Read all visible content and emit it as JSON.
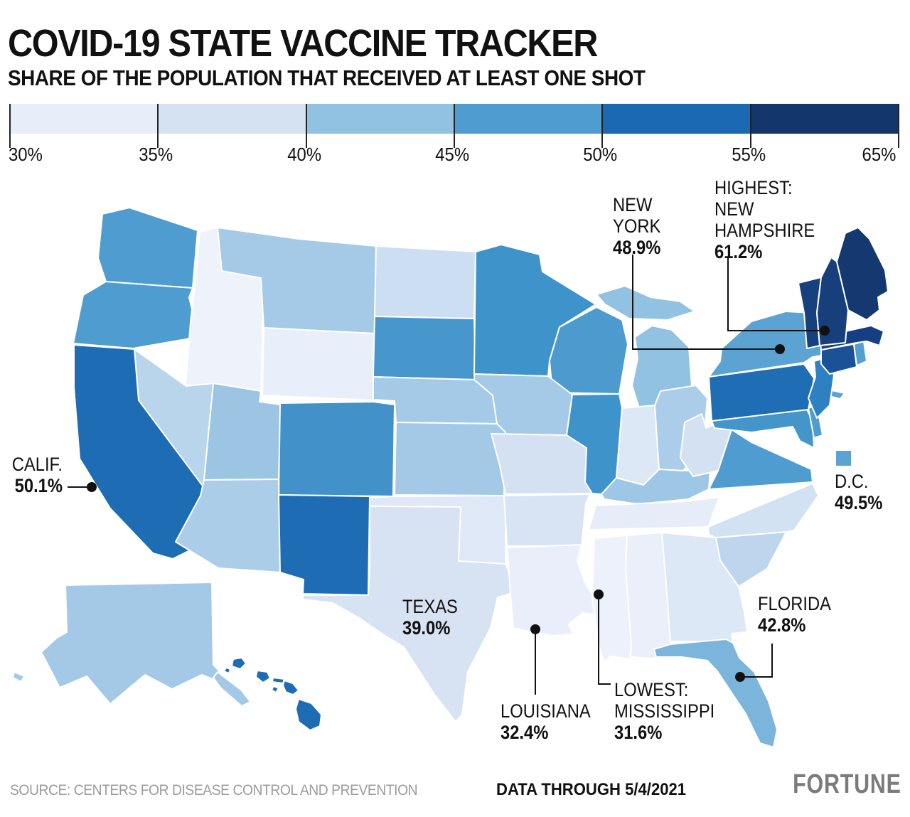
{
  "header": {
    "title": "COVID-19 STATE VACCINE TRACKER",
    "subtitle": "SHARE OF THE POPULATION THAT RECEIVED AT LEAST ONE SHOT"
  },
  "legend": {
    "ticks": [
      "30%",
      "35%",
      "40%",
      "45%",
      "50%",
      "55%",
      "65%"
    ],
    "segment_colors": [
      "#e8edfa",
      "#d4e2f2",
      "#92c2e2",
      "#4f9cd0",
      "#1b69b2",
      "#13376c"
    ]
  },
  "annotations": {
    "new_york": {
      "lines": [
        "NEW",
        "YORK"
      ],
      "value": "48.9%"
    },
    "new_hampshire": {
      "lines": [
        "HIGHEST:",
        "NEW",
        "HAMPSHIRE"
      ],
      "value": "61.2%"
    },
    "california": {
      "lines": [
        "CALIF."
      ],
      "value": "50.1%"
    },
    "dc": {
      "lines": [
        "D.C."
      ],
      "value": "49.5%"
    },
    "texas": {
      "lines": [
        "TEXAS"
      ],
      "value": "39.0%"
    },
    "florida": {
      "lines": [
        "FLORIDA"
      ],
      "value": "42.8%"
    },
    "louisiana": {
      "lines": [
        "LOUISIANA"
      ],
      "value": "32.4%"
    },
    "mississippi": {
      "lines": [
        "LOWEST:",
        "MISSISSIPPI"
      ],
      "value": "31.6%"
    }
  },
  "footer": {
    "source": "SOURCE: CENTERS FOR DISEASE CONTROL AND PREVENTION",
    "data_through": "DATA THROUGH 5/4/2021",
    "brand": "FORTUNE"
  },
  "map": {
    "states": [
      {
        "id": "WA",
        "name": "Washington",
        "color": "#4f9cd0"
      },
      {
        "id": "OR",
        "name": "Oregon",
        "color": "#4f9cd0"
      },
      {
        "id": "CA",
        "name": "California",
        "color": "#1e6cb4"
      },
      {
        "id": "NV",
        "name": "Nevada",
        "color": "#b9d5ec"
      },
      {
        "id": "ID",
        "name": "Idaho",
        "color": "#edf2fb"
      },
      {
        "id": "MT",
        "name": "Montana",
        "color": "#a5cae7"
      },
      {
        "id": "WY",
        "name": "Wyoming",
        "color": "#e9effa"
      },
      {
        "id": "UT",
        "name": "Utah",
        "color": "#9cc5e4"
      },
      {
        "id": "AZ",
        "name": "Arizona",
        "color": "#abcde8"
      },
      {
        "id": "CO",
        "name": "Colorado",
        "color": "#4292c9"
      },
      {
        "id": "NM",
        "name": "New Mexico",
        "color": "#1e6cb4"
      },
      {
        "id": "ND",
        "name": "North Dakota",
        "color": "#ccdef1"
      },
      {
        "id": "SD",
        "name": "South Dakota",
        "color": "#4796cb"
      },
      {
        "id": "NE",
        "name": "Nebraska",
        "color": "#a5cae7"
      },
      {
        "id": "KS",
        "name": "Kansas",
        "color": "#a3c9e7"
      },
      {
        "id": "OK",
        "name": "Oklahoma",
        "color": "#dfe8f6"
      },
      {
        "id": "TX",
        "name": "Texas",
        "color": "#d7e2f2"
      },
      {
        "id": "MN",
        "name": "Minnesota",
        "color": "#3f93cb"
      },
      {
        "id": "IA",
        "name": "Iowa",
        "color": "#a5cae7"
      },
      {
        "id": "MO",
        "name": "Missouri",
        "color": "#d3e1f2"
      },
      {
        "id": "AR",
        "name": "Arkansas",
        "color": "#d8e4f4"
      },
      {
        "id": "LA",
        "name": "Louisiana",
        "color": "#e9eefa"
      },
      {
        "id": "WI",
        "name": "Wisconsin",
        "color": "#4d9bce"
      },
      {
        "id": "IL",
        "name": "Illinois",
        "color": "#3f93cb"
      },
      {
        "id": "MI",
        "name": "Michigan",
        "color": "#92c2e2"
      },
      {
        "id": "IN",
        "name": "Indiana",
        "color": "#dde8f6"
      },
      {
        "id": "OH",
        "name": "Ohio",
        "color": "#abcde9"
      },
      {
        "id": "KY",
        "name": "Kentucky",
        "color": "#9dc7e5"
      },
      {
        "id": "TN",
        "name": "Tennessee",
        "color": "#e7ecf9"
      },
      {
        "id": "MS",
        "name": "Mississippi",
        "color": "#edf1fb"
      },
      {
        "id": "AL",
        "name": "Alabama",
        "color": "#eaeffa"
      },
      {
        "id": "GA",
        "name": "Georgia",
        "color": "#dde8f6"
      },
      {
        "id": "FL",
        "name": "Florida",
        "color": "#7cb5db"
      },
      {
        "id": "SC",
        "name": "South Carolina",
        "color": "#bed6ed"
      },
      {
        "id": "NC",
        "name": "North Carolina",
        "color": "#d3e2f3"
      },
      {
        "id": "VA",
        "name": "Virginia",
        "color": "#4f9cd0"
      },
      {
        "id": "WV",
        "name": "West Virginia",
        "color": "#d4e1f2"
      },
      {
        "id": "MD",
        "name": "Maryland",
        "color": "#4495ca"
      },
      {
        "id": "DE",
        "name": "Delaware",
        "color": "#4f9cd0"
      },
      {
        "id": "PA",
        "name": "Pennsylvania",
        "color": "#1f6db5"
      },
      {
        "id": "NJ",
        "name": "New Jersey",
        "color": "#2e81c0"
      },
      {
        "id": "NY",
        "name": "New York",
        "color": "#5ba3d3"
      },
      {
        "id": "CT",
        "name": "Connecticut",
        "color": "#1b5196"
      },
      {
        "id": "RI",
        "name": "Rhode Island",
        "color": "#55a0d1"
      },
      {
        "id": "MA",
        "name": "Massachusetts",
        "color": "#153f80"
      },
      {
        "id": "VT",
        "name": "Vermont",
        "color": "#16407e"
      },
      {
        "id": "NH",
        "name": "New Hampshire",
        "color": "#163f7b"
      },
      {
        "id": "ME",
        "name": "Maine",
        "color": "#143970"
      },
      {
        "id": "AK",
        "name": "Alaska",
        "color": "#a3c9e7"
      },
      {
        "id": "HI",
        "name": "Hawaii",
        "color": "#1e6cb4"
      },
      {
        "id": "DC",
        "name": "District of Columbia",
        "color": "#5ba3d3"
      }
    ]
  },
  "chart_data": {
    "type": "choropleth_map",
    "region": "United States",
    "title": "COVID-19 STATE VACCINE TRACKER",
    "metric": "Share of the population that received at least one shot (%)",
    "legend": {
      "tick_labels": [
        "30%",
        "35%",
        "40%",
        "45%",
        "50%",
        "55%",
        "65%"
      ],
      "bin_colors": [
        "#e8edfa",
        "#d4e2f2",
        "#92c2e2",
        "#4f9cd0",
        "#1b69b2",
        "#13376c"
      ],
      "range": [
        30,
        65
      ]
    },
    "labeled_values": [
      {
        "state": "New York",
        "value": 48.9
      },
      {
        "state": "New Hampshire",
        "value": 61.2,
        "note": "highest"
      },
      {
        "state": "California",
        "value": 50.1
      },
      {
        "state": "District of Columbia",
        "value": 49.5
      },
      {
        "state": "Texas",
        "value": 39.0
      },
      {
        "state": "Florida",
        "value": 42.8
      },
      {
        "state": "Louisiana",
        "value": 32.4
      },
      {
        "state": "Mississippi",
        "value": 31.6,
        "note": "lowest"
      }
    ],
    "data_through": "5/4/2021",
    "source": "Centers for Disease Control and Prevention"
  }
}
